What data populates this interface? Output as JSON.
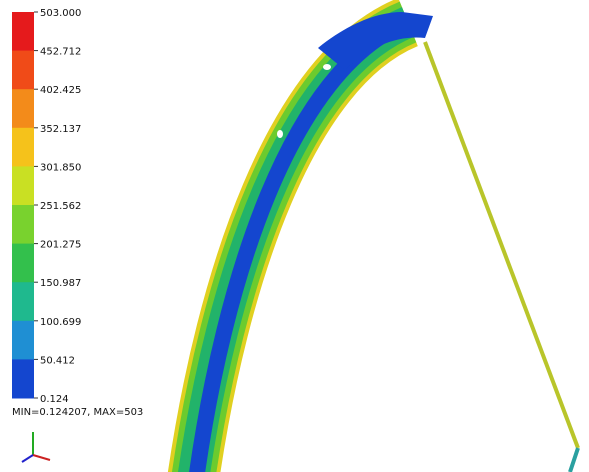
{
  "legend": {
    "labels": [
      "503.000",
      "452.712",
      "402.425",
      "352.137",
      "301.850",
      "251.562",
      "201.275",
      "150.987",
      "100.699",
      "50.412",
      "0.124"
    ],
    "colors": [
      "#e51a1c",
      "#f04b18",
      "#f38b1a",
      "#f5c21b",
      "#c9e023",
      "#79d22e",
      "#33c04c",
      "#1fb98e",
      "#1f8fd3",
      "#1446cf"
    ]
  },
  "footer": "MIN=0.124207, MAX=503"
}
